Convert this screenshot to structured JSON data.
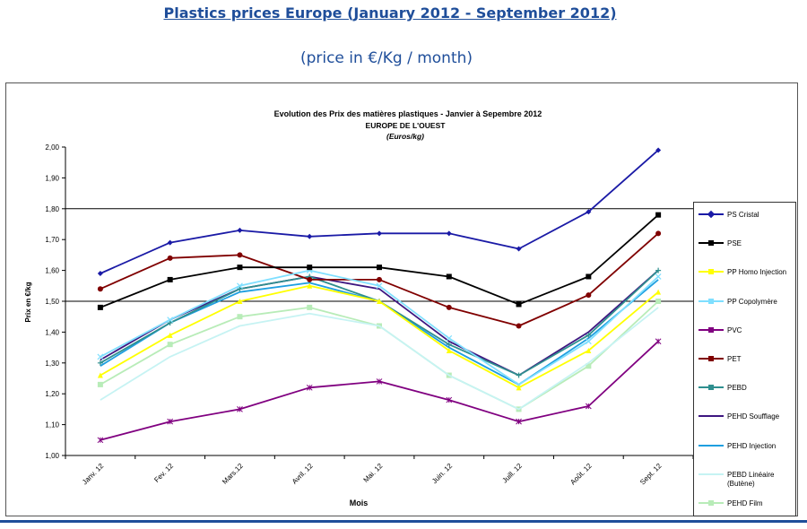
{
  "page": {
    "title": "Plastics prices Europe (January 2012 - September 2012)",
    "subtitle": "(price in €/Kg  / month)"
  },
  "chart_data": {
    "type": "line",
    "title": "Evolution des Prix des matières plastiques - Janvier à Sepembre 2012",
    "subtitle": "EUROPE DE L'OUEST",
    "unit_label": "(Euros/kg)",
    "xlabel": "Mois",
    "ylabel": "Prix en €/kg",
    "ylim": [
      1.0,
      2.0
    ],
    "y_ticks": [
      "1,00",
      "1,10",
      "1,20",
      "1,30",
      "1,40",
      "1,50",
      "1,60",
      "1,70",
      "1,80",
      "1,90",
      "2,00"
    ],
    "grid": "horizontal lines at 1,50 and 1,80",
    "legend_position": "right",
    "categories": [
      "Janv. 12",
      "Fev. 12",
      "Mars.12",
      "Avril. 12",
      "Mai. 12",
      "Juin. 12",
      "Juill. 12",
      "Août. 12",
      "Sept. 12"
    ],
    "series": [
      {
        "name": "PS Cristal",
        "color": "#1a1aa6",
        "marker": "diamond",
        "values": [
          1.59,
          1.69,
          1.73,
          1.71,
          1.72,
          1.72,
          1.67,
          1.79,
          1.99
        ]
      },
      {
        "name": "PSE",
        "color": "#000000",
        "marker": "square",
        "values": [
          1.48,
          1.57,
          1.61,
          1.61,
          1.61,
          1.58,
          1.49,
          1.58,
          1.78
        ]
      },
      {
        "name": "PP Homo Injection",
        "color": "#ffff00",
        "marker": "triangle",
        "values": [
          1.26,
          1.39,
          1.5,
          1.55,
          1.5,
          1.34,
          1.22,
          1.34,
          1.53
        ]
      },
      {
        "name": "PP Copolymère",
        "color": "#7fdfff",
        "marker": "x",
        "values": [
          1.32,
          1.44,
          1.55,
          1.6,
          1.55,
          1.38,
          1.23,
          1.37,
          1.58
        ]
      },
      {
        "name": "PVC",
        "color": "#800080",
        "marker": "star",
        "values": [
          1.05,
          1.11,
          1.15,
          1.22,
          1.24,
          1.18,
          1.11,
          1.16,
          1.37
        ]
      },
      {
        "name": "PET",
        "color": "#800000",
        "marker": "circle",
        "values": [
          1.54,
          1.64,
          1.65,
          1.57,
          1.57,
          1.48,
          1.42,
          1.52,
          1.72
        ]
      },
      {
        "name": "PEBD",
        "color": "#2f8f8f",
        "marker": "plus",
        "values": [
          1.3,
          1.43,
          1.54,
          1.58,
          1.5,
          1.36,
          1.26,
          1.39,
          1.6
        ]
      },
      {
        "name": "PEHD Soufflage",
        "color": "#3d1680",
        "marker": "none",
        "values": [
          1.31,
          1.44,
          1.54,
          1.58,
          1.54,
          1.37,
          1.26,
          1.4,
          1.6
        ]
      },
      {
        "name": "PEHD Injection",
        "color": "#1e9fe0",
        "marker": "none",
        "values": [
          1.29,
          1.43,
          1.53,
          1.56,
          1.5,
          1.35,
          1.23,
          1.38,
          1.57
        ]
      },
      {
        "name": "PEBD Linéaire (Butène)",
        "color": "#c6f3f3",
        "marker": "none",
        "values": [
          1.18,
          1.32,
          1.42,
          1.46,
          1.42,
          1.26,
          1.15,
          1.3,
          1.48
        ]
      },
      {
        "name": "PEHD Film",
        "color": "#b8ecb8",
        "marker": "square",
        "values": [
          1.23,
          1.36,
          1.45,
          1.48,
          1.42,
          1.26,
          1.15,
          1.29,
          1.5
        ]
      }
    ]
  }
}
